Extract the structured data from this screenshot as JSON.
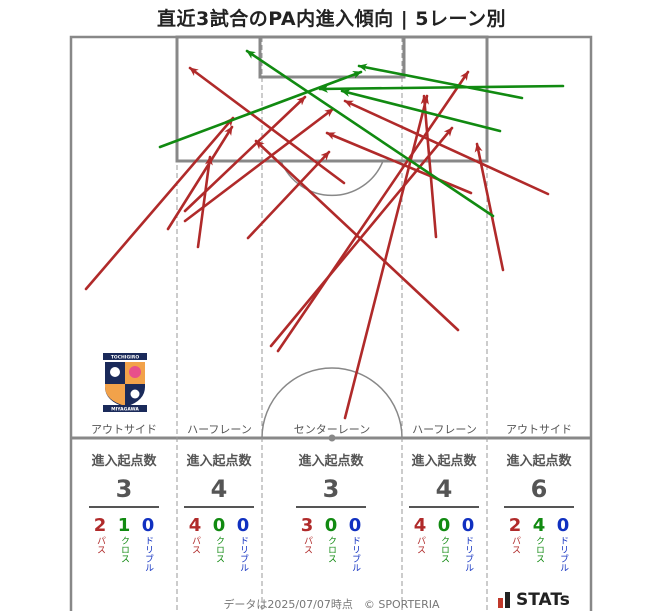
{
  "title": "直近3試合のPA内進入傾向 | 5レーン別",
  "colors": {
    "pass": "#b02a2a",
    "cross": "#118a11",
    "dribble": "#1030c0",
    "line": "#777777"
  },
  "lanes": [
    {
      "label": "アウトサイド",
      "heading": "進入起点数",
      "total": "3",
      "pass": "2",
      "cross": "1",
      "dribble": "0"
    },
    {
      "label": "ハーフレーン",
      "heading": "進入起点数",
      "total": "4",
      "pass": "4",
      "cross": "0",
      "dribble": "0"
    },
    {
      "label": "センターレーン",
      "heading": "進入起点数",
      "total": "3",
      "pass": "3",
      "cross": "0",
      "dribble": "0"
    },
    {
      "label": "ハーフレーン",
      "heading": "進入起点数",
      "total": "4",
      "pass": "4",
      "cross": "0",
      "dribble": "0"
    },
    {
      "label": "アウトサイド",
      "heading": "進入起点数",
      "total": "6",
      "pass": "2",
      "cross": "4",
      "dribble": "0"
    }
  ],
  "stat_words": {
    "pass": "パス",
    "cross": "クロス",
    "dribble": "ドリブル"
  },
  "footer": "データは2025/07/07時点　© SPORTERIA",
  "brand": "STATs",
  "team_logo_text": {
    "top": "TOCHIGIRO",
    "bottom": "MIYAGAWA"
  },
  "chart_data": {
    "type": "flow-map",
    "title": "直近3試合のPA内進入傾向 | 5レーン別",
    "categories": [
      "アウトサイド",
      "ハーフレーン",
      "センターレーン",
      "ハーフレーン",
      "アウトサイド"
    ],
    "series": [
      {
        "name": "パス",
        "values": [
          2,
          4,
          3,
          4,
          2
        ]
      },
      {
        "name": "クロス",
        "values": [
          1,
          0,
          0,
          0,
          4
        ]
      },
      {
        "name": "ドリブル",
        "values": [
          0,
          0,
          0,
          0,
          0
        ]
      }
    ],
    "totals": [
      3,
      4,
      3,
      4,
      6
    ],
    "arrows": [
      {
        "kind": "pass",
        "from": [
          86,
          289
        ],
        "to": [
          233,
          118
        ]
      },
      {
        "kind": "pass",
        "from": [
          168,
          229
        ],
        "to": [
          232,
          127
        ]
      },
      {
        "kind": "pass",
        "from": [
          198,
          247
        ],
        "to": [
          210,
          157
        ]
      },
      {
        "kind": "pass",
        "from": [
          185,
          211
        ],
        "to": [
          305,
          97
        ]
      },
      {
        "kind": "pass",
        "from": [
          344,
          183
        ],
        "to": [
          190,
          68
        ]
      },
      {
        "kind": "pass",
        "from": [
          185,
          221
        ],
        "to": [
          333,
          109
        ]
      },
      {
        "kind": "pass",
        "from": [
          248,
          238
        ],
        "to": [
          329,
          152
        ]
      },
      {
        "kind": "pass",
        "from": [
          271,
          346
        ],
        "to": [
          452,
          128
        ]
      },
      {
        "kind": "pass",
        "from": [
          345,
          418
        ],
        "to": [
          427,
          96
        ]
      },
      {
        "kind": "pass",
        "from": [
          436,
          237
        ],
        "to": [
          424,
          96
        ]
      },
      {
        "kind": "pass",
        "from": [
          458,
          330
        ],
        "to": [
          256,
          141
        ]
      },
      {
        "kind": "pass",
        "from": [
          471,
          193
        ],
        "to": [
          327,
          133
        ]
      },
      {
        "kind": "pass",
        "from": [
          503,
          270
        ],
        "to": [
          477,
          144
        ]
      },
      {
        "kind": "pass",
        "from": [
          548,
          194
        ],
        "to": [
          345,
          101
        ]
      },
      {
        "kind": "pass",
        "from": [
          278,
          351
        ],
        "to": [
          468,
          72
        ]
      },
      {
        "kind": "cross",
        "from": [
          160,
          147
        ],
        "to": [
          361,
          72
        ]
      },
      {
        "kind": "cross",
        "from": [
          563,
          86
        ],
        "to": [
          320,
          89
        ]
      },
      {
        "kind": "cross",
        "from": [
          522,
          98
        ],
        "to": [
          359,
          66
        ]
      },
      {
        "kind": "cross",
        "from": [
          500,
          131
        ],
        "to": [
          342,
          91
        ]
      },
      {
        "kind": "cross",
        "from": [
          493,
          216
        ],
        "to": [
          247,
          51
        ]
      }
    ]
  }
}
